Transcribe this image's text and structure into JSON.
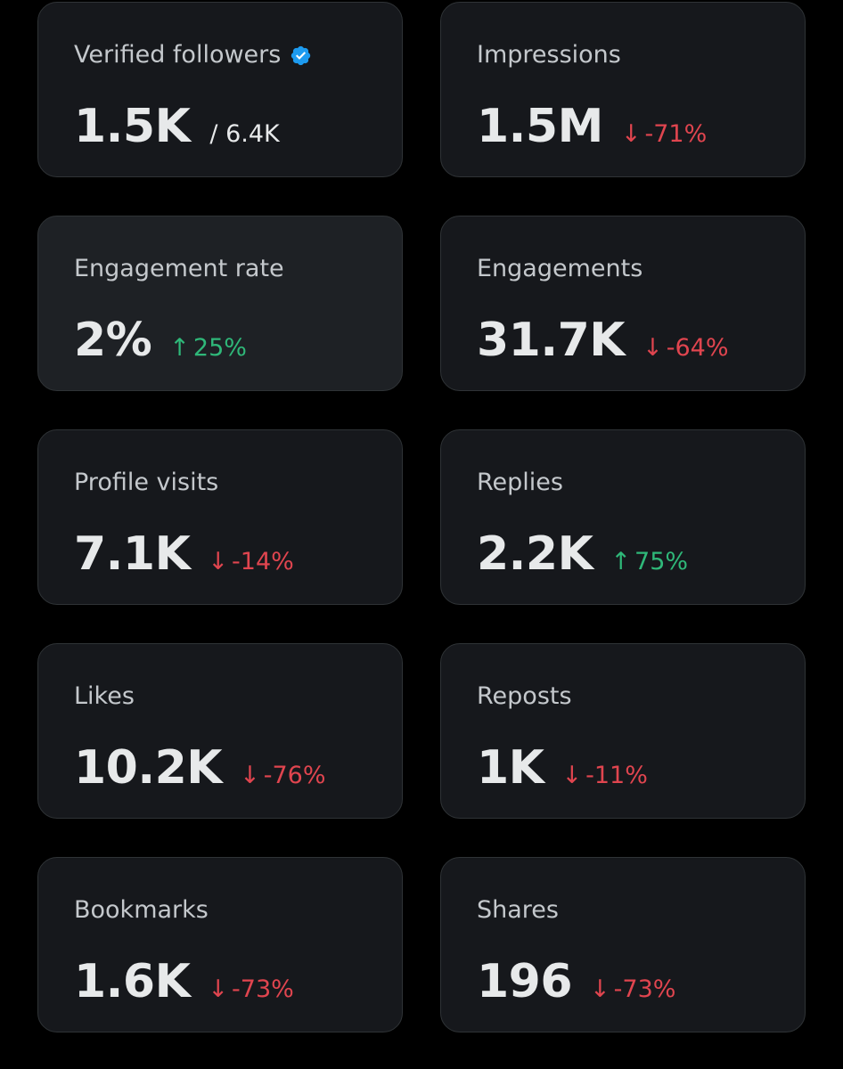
{
  "colors": {
    "background": "#000000",
    "card": "#16181c",
    "card_highlight": "#1e2125",
    "border": "#2f3336",
    "down": "#e0454f",
    "up": "#2fb879",
    "verified": "#1d9bf0"
  },
  "cards": [
    {
      "label": "Verified followers",
      "value": "1.5K",
      "sub": "/ 6.4K",
      "icon": "verified-badge-icon"
    },
    {
      "label": "Impressions",
      "value": "1.5M",
      "arrow": "↓",
      "change": "-71%",
      "direction": "down"
    },
    {
      "label": "Engagement rate",
      "value": "2%",
      "arrow": "↑",
      "change": "25%",
      "direction": "up"
    },
    {
      "label": "Engagements",
      "value": "31.7K",
      "arrow": "↓",
      "change": "-64%",
      "direction": "down"
    },
    {
      "label": "Profile visits",
      "value": "7.1K",
      "arrow": "↓",
      "change": "-14%",
      "direction": "down"
    },
    {
      "label": "Replies",
      "value": "2.2K",
      "arrow": "↑",
      "change": "75%",
      "direction": "up"
    },
    {
      "label": "Likes",
      "value": "10.2K",
      "arrow": "↓",
      "change": "-76%",
      "direction": "down"
    },
    {
      "label": "Reposts",
      "value": "1K",
      "arrow": "↓",
      "change": "-11%",
      "direction": "down"
    },
    {
      "label": "Bookmarks",
      "value": "1.6K",
      "arrow": "↓",
      "change": "-73%",
      "direction": "down"
    },
    {
      "label": "Shares",
      "value": "196",
      "arrow": "↓",
      "change": "-73%",
      "direction": "down"
    }
  ]
}
